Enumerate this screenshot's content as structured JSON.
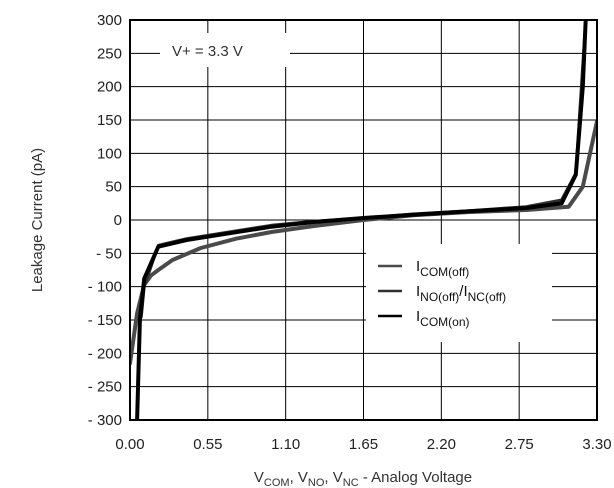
{
  "chart_data": {
    "type": "line",
    "annotation": "V+ = 3.3 V",
    "ylabel": "Leakage Current (pA)",
    "xlabel": "V COM, V NO, V NC -  Analog Voltage",
    "xlabel_parts": {
      "v1": "V",
      "s1": "COM",
      "sep1": ", ",
      "v2": "V",
      "s2": "NO",
      "sep2": ", ",
      "v3": "V",
      "s3": "NC",
      "tail": " -  Analog Voltage"
    },
    "xlim": [
      0,
      3.3
    ],
    "ylim": [
      -300,
      300
    ],
    "x_ticks": [
      "0.00",
      "0.55",
      "1.10",
      "1.65",
      "2.20",
      "2.75",
      "3.30"
    ],
    "y_ticks": [
      "300",
      "250",
      "200",
      "150",
      "100",
      "50",
      "0",
      "- 50",
      "- 100",
      "- 150",
      "- 200",
      "- 250",
      "- 300"
    ],
    "grid": true,
    "legend_position": "center-right",
    "legend": [
      {
        "main": "I",
        "sub": "COM(off)"
      },
      {
        "main": "I",
        "sub": "NO(off)",
        "mid": "/I",
        "sub2": "NC(off)"
      },
      {
        "main": "I",
        "sub": "COM(on)"
      }
    ],
    "series": [
      {
        "color": "#4a4a4a",
        "width": 4,
        "x": [
          0.0,
          0.05,
          0.1,
          0.15,
          0.2,
          0.3,
          0.5,
          0.75,
          1.0,
          1.3,
          1.65,
          2.0,
          2.4,
          2.8,
          3.1,
          3.2,
          3.3
        ],
        "y": [
          -215,
          -140,
          -97,
          -83,
          -75,
          -60,
          -42,
          -28,
          -18,
          -9,
          0,
          7,
          12,
          15,
          20,
          50,
          148
        ]
      },
      {
        "color": "#303030",
        "width": 3,
        "x": [
          0.08,
          0.1,
          0.2,
          0.4,
          0.7,
          1.0,
          1.3,
          1.65,
          2.0,
          2.4,
          2.8,
          3.05,
          3.15,
          3.22
        ],
        "y": [
          -145,
          -100,
          -38,
          -28,
          -18,
          -8,
          -2,
          3,
          9,
          14,
          20,
          30,
          70,
          300
        ]
      },
      {
        "color": "#000000",
        "width": 4,
        "x": [
          0.05,
          0.07,
          0.1,
          0.2,
          0.4,
          0.7,
          1.0,
          1.3,
          1.65,
          2.0,
          2.4,
          2.8,
          3.05,
          3.15,
          3.2,
          3.22
        ],
        "y": [
          -300,
          -150,
          -88,
          -40,
          -30,
          -20,
          -10,
          -3,
          3,
          8,
          13,
          18,
          25,
          68,
          200,
          300
        ]
      }
    ]
  }
}
